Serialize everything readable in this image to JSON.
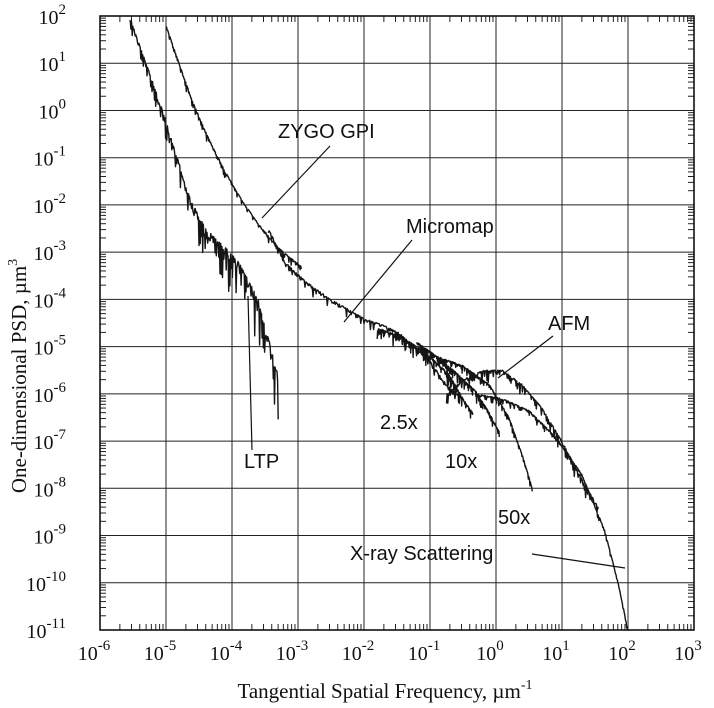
{
  "chart_data": {
    "type": "line",
    "title": "",
    "xlabel": "Tangential Spatial Frequency, µm",
    "xlabel_exponent": "-1",
    "ylabel": "One-dimensional PSD, µm",
    "ylabel_exponent": "3",
    "xscale": "log",
    "yscale": "log",
    "xlim_exp": [
      -6,
      3
    ],
    "ylim_exp": [
      -11,
      2
    ],
    "x_ticks": [
      {
        "base": "10",
        "exp": "-6"
      },
      {
        "base": "10",
        "exp": "-5"
      },
      {
        "base": "10",
        "exp": "-4"
      },
      {
        "base": "10",
        "exp": "-3"
      },
      {
        "base": "10",
        "exp": "-2"
      },
      {
        "base": "10",
        "exp": "-1"
      },
      {
        "base": "10",
        "exp": "0"
      },
      {
        "base": "10",
        "exp": "1"
      },
      {
        "base": "10",
        "exp": "2"
      },
      {
        "base": "10",
        "exp": "3"
      }
    ],
    "y_ticks": [
      {
        "base": "10",
        "exp": "2"
      },
      {
        "base": "10",
        "exp": "1"
      },
      {
        "base": "10",
        "exp": "0"
      },
      {
        "base": "10",
        "exp": "-1"
      },
      {
        "base": "10",
        "exp": "-2"
      },
      {
        "base": "10",
        "exp": "-3"
      },
      {
        "base": "10",
        "exp": "-4"
      },
      {
        "base": "10",
        "exp": "-5"
      },
      {
        "base": "10",
        "exp": "-6"
      },
      {
        "base": "10",
        "exp": "-7"
      },
      {
        "base": "10",
        "exp": "-8"
      },
      {
        "base": "10",
        "exp": "-9"
      },
      {
        "base": "10",
        "exp": "-10"
      },
      {
        "base": "10",
        "exp": "-11"
      }
    ],
    "grid": true,
    "series": [
      {
        "name": "LTP",
        "noise": 0.9,
        "points": [
          [
            -5.55,
            2.0
          ],
          [
            -5.3,
            1.0
          ],
          [
            -5.05,
            0.0
          ],
          [
            -4.85,
            -0.9
          ],
          [
            -4.65,
            -1.8
          ],
          [
            -4.4,
            -2.5
          ],
          [
            -4.1,
            -2.9
          ],
          [
            -3.9,
            -3.2
          ],
          [
            -3.75,
            -3.6
          ],
          [
            -3.6,
            -4.0
          ],
          [
            -3.45,
            -4.8
          ],
          [
            -3.3,
            -5.6
          ]
        ]
      },
      {
        "name": "ZYGO GPI",
        "noise": 0.12,
        "points": [
          [
            -5.0,
            1.8
          ],
          [
            -4.8,
            1.0
          ],
          [
            -4.6,
            0.2
          ],
          [
            -4.35,
            -0.6
          ],
          [
            -4.1,
            -1.3
          ],
          [
            -3.85,
            -1.9
          ],
          [
            -3.6,
            -2.4
          ],
          [
            -3.3,
            -2.9
          ],
          [
            -2.95,
            -3.3
          ]
        ]
      },
      {
        "name": "Micromap",
        "noise": 0.15,
        "points": [
          [
            -3.45,
            -2.5
          ],
          [
            -3.2,
            -3.2
          ],
          [
            -2.9,
            -3.6
          ],
          [
            -2.5,
            -4.0
          ],
          [
            -2.0,
            -4.4
          ],
          [
            -1.7,
            -4.55
          ],
          [
            -1.45,
            -4.72
          ],
          [
            -1.3,
            -4.95
          ],
          [
            -1.05,
            -5.2
          ],
          [
            -0.75,
            -5.8
          ],
          [
            -0.55,
            -6.05
          ]
        ]
      },
      {
        "name": "2.5x",
        "noise": 0.2,
        "points": [
          [
            -1.8,
            -4.6
          ],
          [
            -1.4,
            -4.8
          ],
          [
            -1.0,
            -5.2
          ],
          [
            -0.7,
            -5.6
          ],
          [
            -0.5,
            -6.1
          ],
          [
            -0.35,
            -6.4
          ]
        ]
      },
      {
        "name": "10x",
        "noise": 0.16,
        "points": [
          [
            -1.2,
            -4.9
          ],
          [
            -0.9,
            -5.2
          ],
          [
            -0.6,
            -5.55
          ],
          [
            -0.3,
            -5.95
          ],
          [
            -0.1,
            -6.4
          ],
          [
            0.05,
            -6.8
          ]
        ]
      },
      {
        "name": "50x",
        "noise": 0.13,
        "points": [
          [
            -0.9,
            -5.2
          ],
          [
            -0.5,
            -5.4
          ],
          [
            -0.1,
            -5.8
          ],
          [
            0.2,
            -6.5
          ],
          [
            0.4,
            -7.3
          ],
          [
            0.55,
            -8.0
          ]
        ]
      },
      {
        "name": "AFM",
        "noise": 0.2,
        "points": [
          [
            -0.75,
            -6.0
          ],
          [
            -0.5,
            -5.7
          ],
          [
            -0.2,
            -5.5
          ],
          [
            0.1,
            -5.5
          ],
          [
            0.4,
            -5.8
          ],
          [
            0.7,
            -6.3
          ],
          [
            1.0,
            -7.0
          ],
          [
            1.3,
            -7.8
          ],
          [
            1.55,
            -8.4
          ]
        ]
      },
      {
        "name": "X-ray Scattering",
        "noise": 0.1,
        "points": [
          [
            -0.3,
            -6.0
          ],
          [
            0.1,
            -6.1
          ],
          [
            0.5,
            -6.35
          ],
          [
            0.9,
            -6.9
          ],
          [
            1.3,
            -7.7
          ],
          [
            1.65,
            -8.9
          ],
          [
            1.85,
            -10.0
          ],
          [
            2.0,
            -11.0
          ]
        ]
      }
    ],
    "annotations": [
      {
        "text": "ZYGO GPI",
        "target": "ZYGO GPI"
      },
      {
        "text": "Micromap",
        "target": "Micromap"
      },
      {
        "text": "AFM",
        "target": "AFM"
      },
      {
        "text": "LTP",
        "target": "LTP"
      },
      {
        "text": "2.5x",
        "target": "2.5x"
      },
      {
        "text": "10x",
        "target": "10x"
      },
      {
        "text": "50x",
        "target": "50x"
      },
      {
        "text": "X-ray Scattering",
        "target": "X-ray Scattering"
      }
    ]
  }
}
